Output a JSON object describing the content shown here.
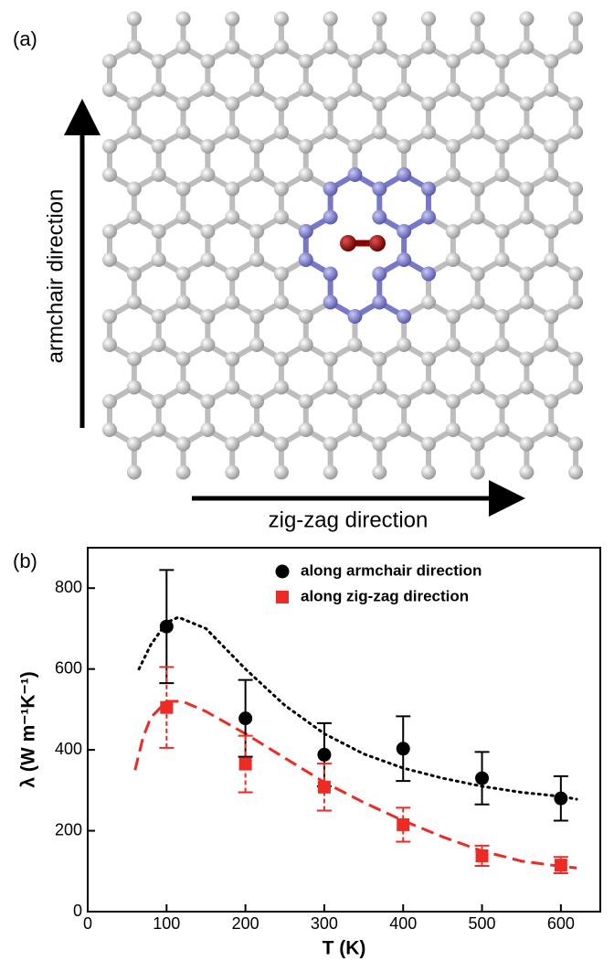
{
  "panel_a": {
    "label": "(a)",
    "vertical_arrow_label": "armchair direction",
    "horizontal_arrow_label": "zig-zag direction"
  },
  "chart_data": {
    "type": "scatter",
    "label": "(b)",
    "x_label": "T (K)",
    "y_label": "λ (W m⁻¹K⁻¹)",
    "xlim": [
      0,
      650
    ],
    "ylim": [
      0,
      900
    ],
    "xticks": [
      0,
      100,
      200,
      300,
      400,
      500,
      600
    ],
    "yticks": [
      0,
      200,
      400,
      600,
      800
    ],
    "legend": "top-right",
    "series": [
      {
        "name": "along armchair direction",
        "color": "#000000",
        "marker": "circle",
        "x": [
          100,
          200,
          300,
          400,
          500,
          600
        ],
        "values": [
          705,
          478,
          388,
          403,
          330,
          280
        ],
        "errors": [
          140,
          95,
          78,
          80,
          65,
          55
        ]
      },
      {
        "name": "along zig-zag direction",
        "color": "#ee2a24",
        "marker": "square",
        "x": [
          100,
          200,
          300,
          400,
          500,
          600
        ],
        "values": [
          505,
          365,
          308,
          215,
          138,
          115
        ],
        "errors": [
          100,
          70,
          58,
          42,
          25,
          20
        ]
      }
    ],
    "fits": [
      {
        "color": "#000000",
        "dash": "dotted",
        "x": [
          65,
          80,
          100,
          115,
          150,
          200,
          250,
          300,
          350,
          400,
          450,
          500,
          550,
          600,
          620
        ],
        "values": [
          600,
          660,
          715,
          728,
          700,
          600,
          510,
          440,
          390,
          355,
          330,
          310,
          295,
          285,
          278
        ]
      },
      {
        "color": "#ee2a24",
        "dash": "dashed",
        "x": [
          60,
          70,
          80,
          100,
          120,
          150,
          200,
          250,
          300,
          350,
          400,
          450,
          500,
          550,
          600,
          620
        ],
        "values": [
          350,
          430,
          480,
          520,
          520,
          495,
          440,
          380,
          320,
          270,
          225,
          185,
          150,
          125,
          112,
          108
        ]
      }
    ]
  }
}
